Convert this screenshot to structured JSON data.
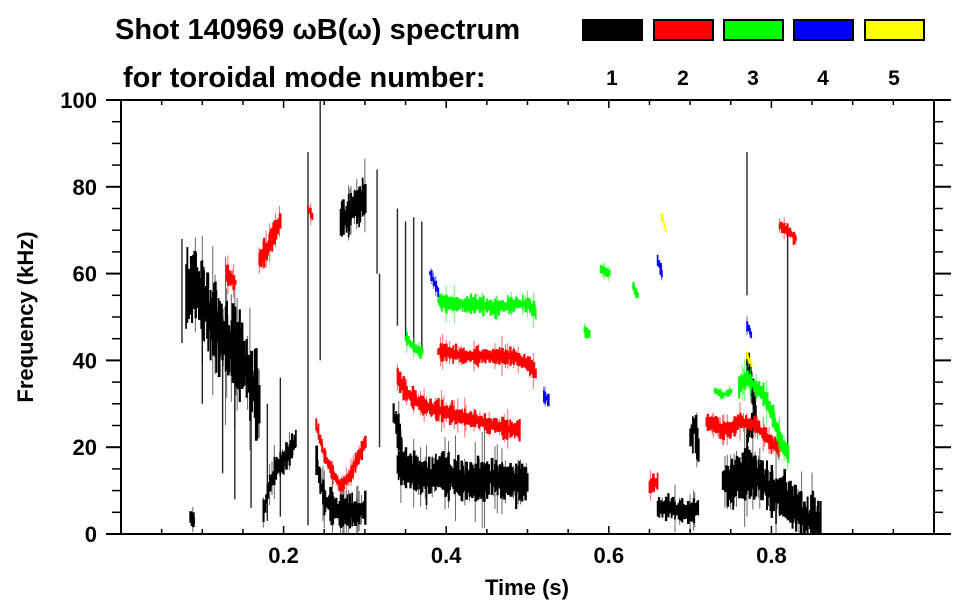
{
  "chart_data": {
    "type": "heatmap",
    "title_line1": "Shot 140969 ωB(ω) spectrum",
    "title_line2": "for toroidal mode number:",
    "xlabel": "Time (s)",
    "ylabel": "Frequency (kHz)",
    "xlim": [
      0.0,
      1.0
    ],
    "ylim": [
      0,
      100
    ],
    "x_ticks": [
      0.2,
      0.4,
      0.6,
      0.8
    ],
    "x_tick_labels": [
      "0.2",
      "0.4",
      "0.6",
      "0.8"
    ],
    "y_ticks": [
      0,
      20,
      40,
      60,
      80,
      100
    ],
    "y_tick_labels": [
      "0",
      "20",
      "40",
      "60",
      "80",
      "100"
    ],
    "x_minor_step": 0.05,
    "y_minor_step": 5,
    "grid": false,
    "legend": {
      "placement": "top-right",
      "entries": [
        {
          "label": "1",
          "color": "#000000"
        },
        {
          "label": "2",
          "color": "#ff0000"
        },
        {
          "label": "3",
          "color": "#00ff00"
        },
        {
          "label": "4",
          "color": "#0000ff"
        },
        {
          "label": "5",
          "color": "#ffff00"
        }
      ]
    },
    "features": [
      {
        "mode": 1,
        "points": [
          [
            0.08,
            55
          ],
          [
            0.09,
            58
          ],
          [
            0.1,
            54
          ],
          [
            0.11,
            50
          ],
          [
            0.12,
            47
          ],
          [
            0.13,
            44
          ],
          [
            0.14,
            42
          ],
          [
            0.15,
            40
          ],
          [
            0.16,
            35
          ],
          [
            0.17,
            30
          ]
        ],
        "spread": 9
      },
      {
        "mode": 1,
        "points": [
          [
            0.085,
            4
          ],
          [
            0.09,
            3
          ]
        ],
        "spread": 2
      },
      {
        "mode": 1,
        "points": [
          [
            0.175,
            5
          ],
          [
            0.18,
            10
          ],
          [
            0.19,
            15
          ],
          [
            0.2,
            17
          ],
          [
            0.21,
            20
          ],
          [
            0.215,
            22
          ]
        ],
        "spread": 3
      },
      {
        "mode": 1,
        "points": [
          [
            0.24,
            18
          ],
          [
            0.245,
            12
          ],
          [
            0.25,
            8
          ],
          [
            0.26,
            6
          ],
          [
            0.27,
            5
          ],
          [
            0.28,
            5
          ],
          [
            0.29,
            5
          ],
          [
            0.3,
            6
          ]
        ],
        "spread": 4
      },
      {
        "mode": 1,
        "points": [
          [
            0.27,
            72
          ],
          [
            0.28,
            74
          ],
          [
            0.29,
            76
          ],
          [
            0.3,
            78
          ]
        ],
        "spread": 5
      },
      {
        "mode": 1,
        "points": [
          [
            0.34,
            16
          ],
          [
            0.35,
            15
          ],
          [
            0.36,
            14
          ],
          [
            0.37,
            13
          ],
          [
            0.38,
            13
          ],
          [
            0.39,
            14
          ],
          [
            0.4,
            14
          ],
          [
            0.41,
            13
          ],
          [
            0.42,
            12
          ],
          [
            0.43,
            12
          ],
          [
            0.44,
            12
          ],
          [
            0.45,
            13
          ],
          [
            0.46,
            13
          ],
          [
            0.47,
            12
          ],
          [
            0.48,
            12
          ],
          [
            0.49,
            12
          ],
          [
            0.5,
            12
          ]
        ],
        "spread": 5
      },
      {
        "mode": 1,
        "points": [
          [
            0.335,
            28
          ],
          [
            0.34,
            24
          ],
          [
            0.345,
            20
          ]
        ],
        "spread": 4
      },
      {
        "mode": 1,
        "points": [
          [
            0.66,
            6
          ],
          [
            0.67,
            6
          ],
          [
            0.68,
            6
          ],
          [
            0.69,
            5
          ],
          [
            0.7,
            5
          ],
          [
            0.71,
            6
          ]
        ],
        "spread": 3
      },
      {
        "mode": 1,
        "points": [
          [
            0.7,
            22
          ],
          [
            0.705,
            25
          ],
          [
            0.71,
            20
          ]
        ],
        "spread": 5
      },
      {
        "mode": 1,
        "points": [
          [
            0.74,
            12
          ],
          [
            0.75,
            12
          ],
          [
            0.76,
            13
          ],
          [
            0.77,
            14
          ],
          [
            0.78,
            14
          ],
          [
            0.79,
            12
          ],
          [
            0.8,
            10
          ],
          [
            0.81,
            9
          ],
          [
            0.82,
            7
          ],
          [
            0.83,
            6
          ],
          [
            0.84,
            4
          ],
          [
            0.85,
            3
          ],
          [
            0.86,
            2
          ]
        ],
        "spread": 6
      },
      {
        "mode": 1,
        "points": [
          [
            0.77,
            22
          ],
          [
            0.78,
            28
          ],
          [
            0.775,
            35
          ],
          [
            0.77,
            40
          ]
        ],
        "spread": 3
      },
      {
        "mode": 2,
        "points": [
          [
            0.17,
            63
          ],
          [
            0.18,
            66
          ],
          [
            0.19,
            70
          ],
          [
            0.195,
            72
          ]
        ],
        "spread": 3
      },
      {
        "mode": 2,
        "points": [
          [
            0.13,
            60
          ],
          [
            0.14,
            58
          ]
        ],
        "spread": 2
      },
      {
        "mode": 2,
        "points": [
          [
            0.23,
            75
          ],
          [
            0.235,
            73
          ]
        ],
        "spread": 2
      },
      {
        "mode": 2,
        "points": [
          [
            0.24,
            25
          ],
          [
            0.25,
            18
          ],
          [
            0.26,
            14
          ],
          [
            0.27,
            11
          ],
          [
            0.28,
            13
          ],
          [
            0.29,
            17
          ],
          [
            0.3,
            21
          ]
        ],
        "spread": 2
      },
      {
        "mode": 2,
        "points": [
          [
            0.34,
            36
          ],
          [
            0.35,
            33
          ],
          [
            0.36,
            31
          ],
          [
            0.37,
            30
          ],
          [
            0.38,
            29
          ],
          [
            0.4,
            28
          ],
          [
            0.42,
            27
          ],
          [
            0.44,
            26
          ],
          [
            0.46,
            25
          ],
          [
            0.48,
            24
          ],
          [
            0.49,
            24
          ]
        ],
        "spread": 2.5
      },
      {
        "mode": 2,
        "points": [
          [
            0.39,
            42
          ],
          [
            0.4,
            42
          ],
          [
            0.42,
            41
          ],
          [
            0.44,
            41
          ],
          [
            0.46,
            41
          ],
          [
            0.48,
            41
          ],
          [
            0.5,
            39
          ],
          [
            0.51,
            37
          ]
        ],
        "spread": 2
      },
      {
        "mode": 2,
        "points": [
          [
            0.65,
            11
          ],
          [
            0.66,
            12
          ]
        ],
        "spread": 3
      },
      {
        "mode": 2,
        "points": [
          [
            0.72,
            26
          ],
          [
            0.73,
            25
          ],
          [
            0.74,
            24
          ],
          [
            0.75,
            24
          ],
          [
            0.76,
            26
          ],
          [
            0.78,
            25
          ],
          [
            0.8,
            21
          ],
          [
            0.81,
            20
          ]
        ],
        "spread": 2
      },
      {
        "mode": 2,
        "points": [
          [
            0.81,
            71
          ],
          [
            0.82,
            70
          ],
          [
            0.83,
            68
          ]
        ],
        "spread": 1.5
      },
      {
        "mode": 3,
        "points": [
          [
            0.39,
            54
          ],
          [
            0.4,
            53
          ],
          [
            0.42,
            53
          ],
          [
            0.44,
            53
          ],
          [
            0.46,
            52
          ],
          [
            0.48,
            53
          ],
          [
            0.5,
            53
          ],
          [
            0.51,
            51
          ]
        ],
        "spread": 2
      },
      {
        "mode": 3,
        "points": [
          [
            0.35,
            45
          ],
          [
            0.36,
            43
          ],
          [
            0.37,
            42
          ]
        ],
        "spread": 1.5
      },
      {
        "mode": 3,
        "points": [
          [
            0.59,
            61
          ],
          [
            0.6,
            60
          ]
        ],
        "spread": 1
      },
      {
        "mode": 3,
        "points": [
          [
            0.63,
            57
          ],
          [
            0.635,
            55
          ]
        ],
        "spread": 1.5
      },
      {
        "mode": 3,
        "points": [
          [
            0.57,
            47
          ],
          [
            0.575,
            46
          ]
        ],
        "spread": 1.5
      },
      {
        "mode": 3,
        "points": [
          [
            0.76,
            34
          ],
          [
            0.77,
            36
          ],
          [
            0.79,
            32
          ],
          [
            0.8,
            28
          ],
          [
            0.81,
            22
          ],
          [
            0.82,
            18
          ]
        ],
        "spread": 2.5
      },
      {
        "mode": 3,
        "points": [
          [
            0.73,
            33
          ],
          [
            0.74,
            32
          ],
          [
            0.75,
            33
          ]
        ],
        "spread": 1
      },
      {
        "mode": 4,
        "points": [
          [
            0.38,
            60
          ],
          [
            0.39,
            56
          ]
        ],
        "spread": 1.5
      },
      {
        "mode": 4,
        "points": [
          [
            0.52,
            32
          ],
          [
            0.525,
            31
          ]
        ],
        "spread": 1.5
      },
      {
        "mode": 4,
        "points": [
          [
            0.77,
            48
          ],
          [
            0.775,
            46
          ]
        ],
        "spread": 1.5
      },
      {
        "mode": 4,
        "points": [
          [
            0.66,
            63
          ],
          [
            0.665,
            60
          ]
        ],
        "spread": 1.5
      },
      {
        "mode": 5,
        "points": [
          [
            0.665,
            73
          ],
          [
            0.67,
            70
          ]
        ],
        "spread": 1
      },
      {
        "mode": 5,
        "points": [
          [
            0.77,
            41
          ],
          [
            0.775,
            39
          ]
        ],
        "spread": 1
      }
    ],
    "vertical_streaks": [
      {
        "mode": 1,
        "t": 0.075,
        "f": [
          44,
          68
        ]
      },
      {
        "mode": 1,
        "t": 0.1,
        "f": [
          30,
          62
        ]
      },
      {
        "mode": 1,
        "t": 0.125,
        "f": [
          14,
          50
        ]
      },
      {
        "mode": 1,
        "t": 0.14,
        "f": [
          8,
          42
        ]
      },
      {
        "mode": 1,
        "t": 0.16,
        "f": [
          6,
          38
        ]
      },
      {
        "mode": 1,
        "t": 0.18,
        "f": [
          3,
          30
        ]
      },
      {
        "mode": 1,
        "t": 0.196,
        "f": [
          4,
          36
        ]
      },
      {
        "mode": 1,
        "t": 0.23,
        "f": [
          2,
          88
        ]
      },
      {
        "mode": 1,
        "t": 0.245,
        "f": [
          40,
          100
        ]
      },
      {
        "mode": 1,
        "t": 0.315,
        "f": [
          60,
          84
        ]
      },
      {
        "mode": 1,
        "t": 0.318,
        "f": [
          20,
          60
        ]
      },
      {
        "mode": 1,
        "t": 0.34,
        "f": [
          48,
          75
        ]
      },
      {
        "mode": 1,
        "t": 0.35,
        "f": [
          45,
          72
        ]
      },
      {
        "mode": 1,
        "t": 0.36,
        "f": [
          44,
          73
        ]
      },
      {
        "mode": 1,
        "t": 0.37,
        "f": [
          42,
          72
        ]
      },
      {
        "mode": 1,
        "t": 0.77,
        "f": [
          55,
          88
        ]
      },
      {
        "mode": 1,
        "t": 0.82,
        "f": [
          20,
          70
        ]
      }
    ]
  }
}
